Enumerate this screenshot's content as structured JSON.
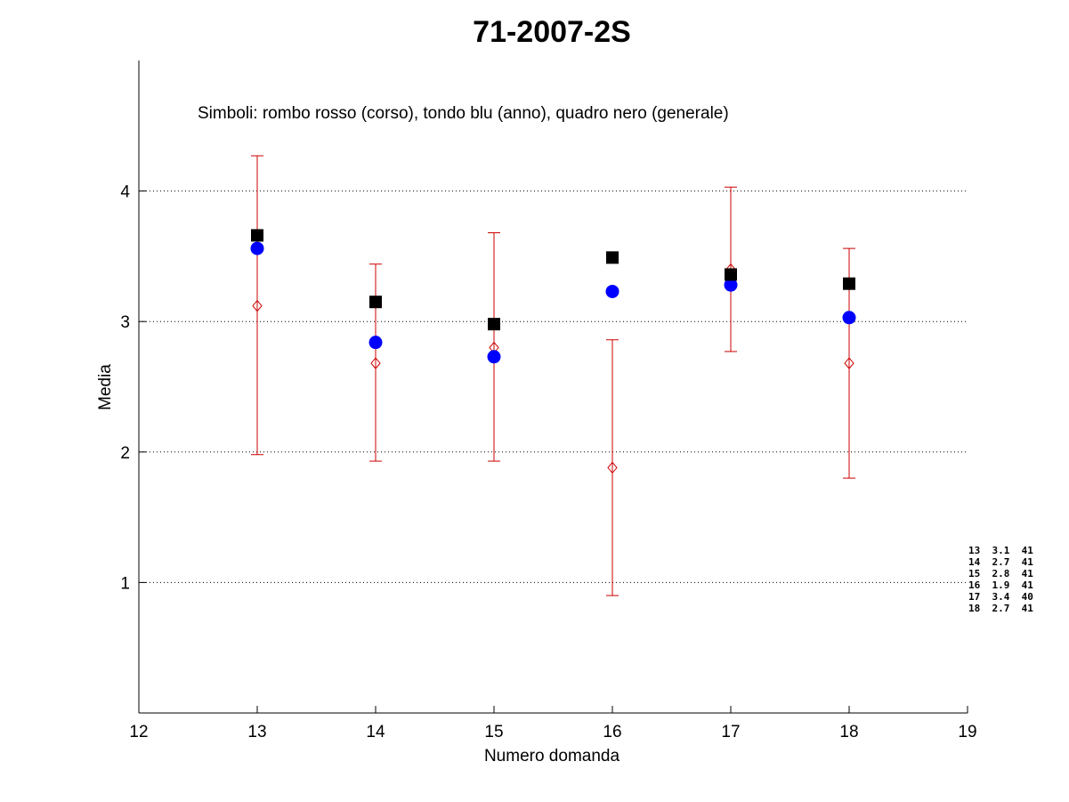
{
  "chart_data": {
    "type": "scatter",
    "title": "71-2007-2S",
    "xlabel": "Numero domanda",
    "ylabel": "Media",
    "annotation": "Simboli: rombo rosso (corso), tondo blu (anno), quadro nero (generale)",
    "xlim": [
      12,
      19
    ],
    "ylim": [
      0,
      5
    ],
    "xticks": [
      12,
      13,
      14,
      15,
      16,
      17,
      18,
      19
    ],
    "yticks": [
      1,
      2,
      3,
      4
    ],
    "grid": "horizontal dotted at y ticks",
    "x": [
      13,
      14,
      15,
      16,
      17,
      18
    ],
    "series": [
      {
        "marker": "diamond",
        "color": "#cc0000",
        "values": [
          3.12,
          2.68,
          2.8,
          1.88,
          3.4,
          2.68
        ],
        "error_low": [
          1.98,
          1.93,
          1.93,
          0.9,
          2.77,
          1.8
        ],
        "error_high": [
          4.27,
          3.44,
          3.68,
          2.86,
          4.03,
          3.56
        ]
      },
      {
        "marker": "circle",
        "color": "#0000ff",
        "values": [
          3.56,
          2.84,
          2.73,
          3.23,
          3.28,
          3.03
        ]
      },
      {
        "marker": "square",
        "color": "#000000",
        "values": [
          3.66,
          3.15,
          2.98,
          3.49,
          3.36,
          3.29
        ]
      }
    ],
    "side_table": [
      "13  3.1  41",
      "14  2.7  41",
      "15  2.8  41",
      "16  1.9  41",
      "17  3.4  40",
      "18  2.7  41"
    ]
  }
}
